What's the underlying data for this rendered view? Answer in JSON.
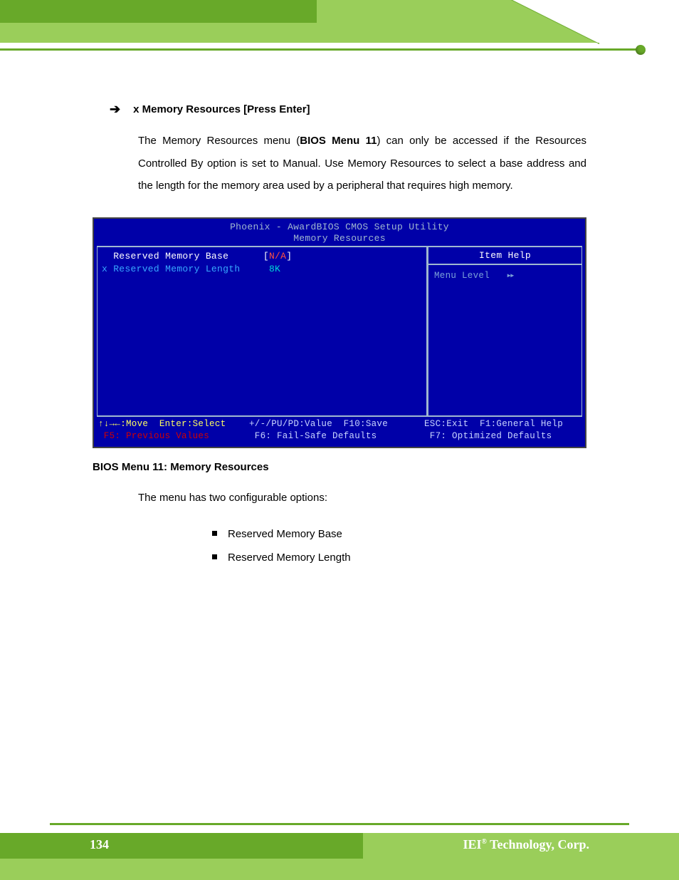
{
  "colors": {
    "header_light": "#9ace5a",
    "header_dark": "#68a929",
    "rule_green": "#68a929",
    "bios_bg": "#0000a8",
    "bios_border": "#a0b8d0",
    "bios_blue_text": "#38a8ff",
    "bios_red": "#ff5040",
    "bios_cyan": "#00d8d8",
    "bios_help_text": "#7aa0d8",
    "bios_yellow": "#ffff60",
    "bios_dark_red": "#d00000",
    "white": "#ffffff"
  },
  "heading": {
    "arrow": "➔",
    "text": "x Memory Resources [Press Enter]"
  },
  "paragraph": {
    "pre": "The Memory Resources menu (",
    "bold": "BIOS Menu 11",
    "post": ") can only be accessed if the Resources Controlled By option is set to Manual. Use Memory Resources to select a base address and the length for the memory area used by a peripheral that requires high memory."
  },
  "caption": "BIOS Menu 11: Memory Resources",
  "subtext": "The menu has two configurable options:",
  "list": [
    "Reserved Memory Base",
    "Reserved Memory Length"
  ],
  "bios": {
    "title_line1": "Phoenix - AwardBIOS CMOS Setup Utility",
    "title_line2": "Memory Resources",
    "rows": [
      {
        "label": "  Reserved Memory Base",
        "label_color": "white-text",
        "pre": "[",
        "value": "N/A",
        "value_color": "red-val",
        "post": "]"
      },
      {
        "label": "x Reserved Memory Length",
        "label_color": "blue-text",
        "pre": " ",
        "value": "8K",
        "value_color": "cyan-val",
        "post": ""
      }
    ],
    "help_title": "Item Help",
    "help_body_label": "Menu Level",
    "help_body_arrows": "▸▸",
    "footer": {
      "row1": {
        "c1": "↑↓→←:Move  Enter:Select",
        "c2": "+/-/PU/PD:Value  F10:Save",
        "c3": "ESC:Exit  F1:General Help"
      },
      "row2": {
        "c1": " F5: Previous Values",
        "c2": " F6: Fail-Safe Defaults",
        "c3": " F7: Optimized Defaults"
      }
    }
  },
  "footer": {
    "page_number": "134",
    "corp_pre": "IEI",
    "corp_sup": "®",
    "corp_post": " Technology, Corp."
  }
}
